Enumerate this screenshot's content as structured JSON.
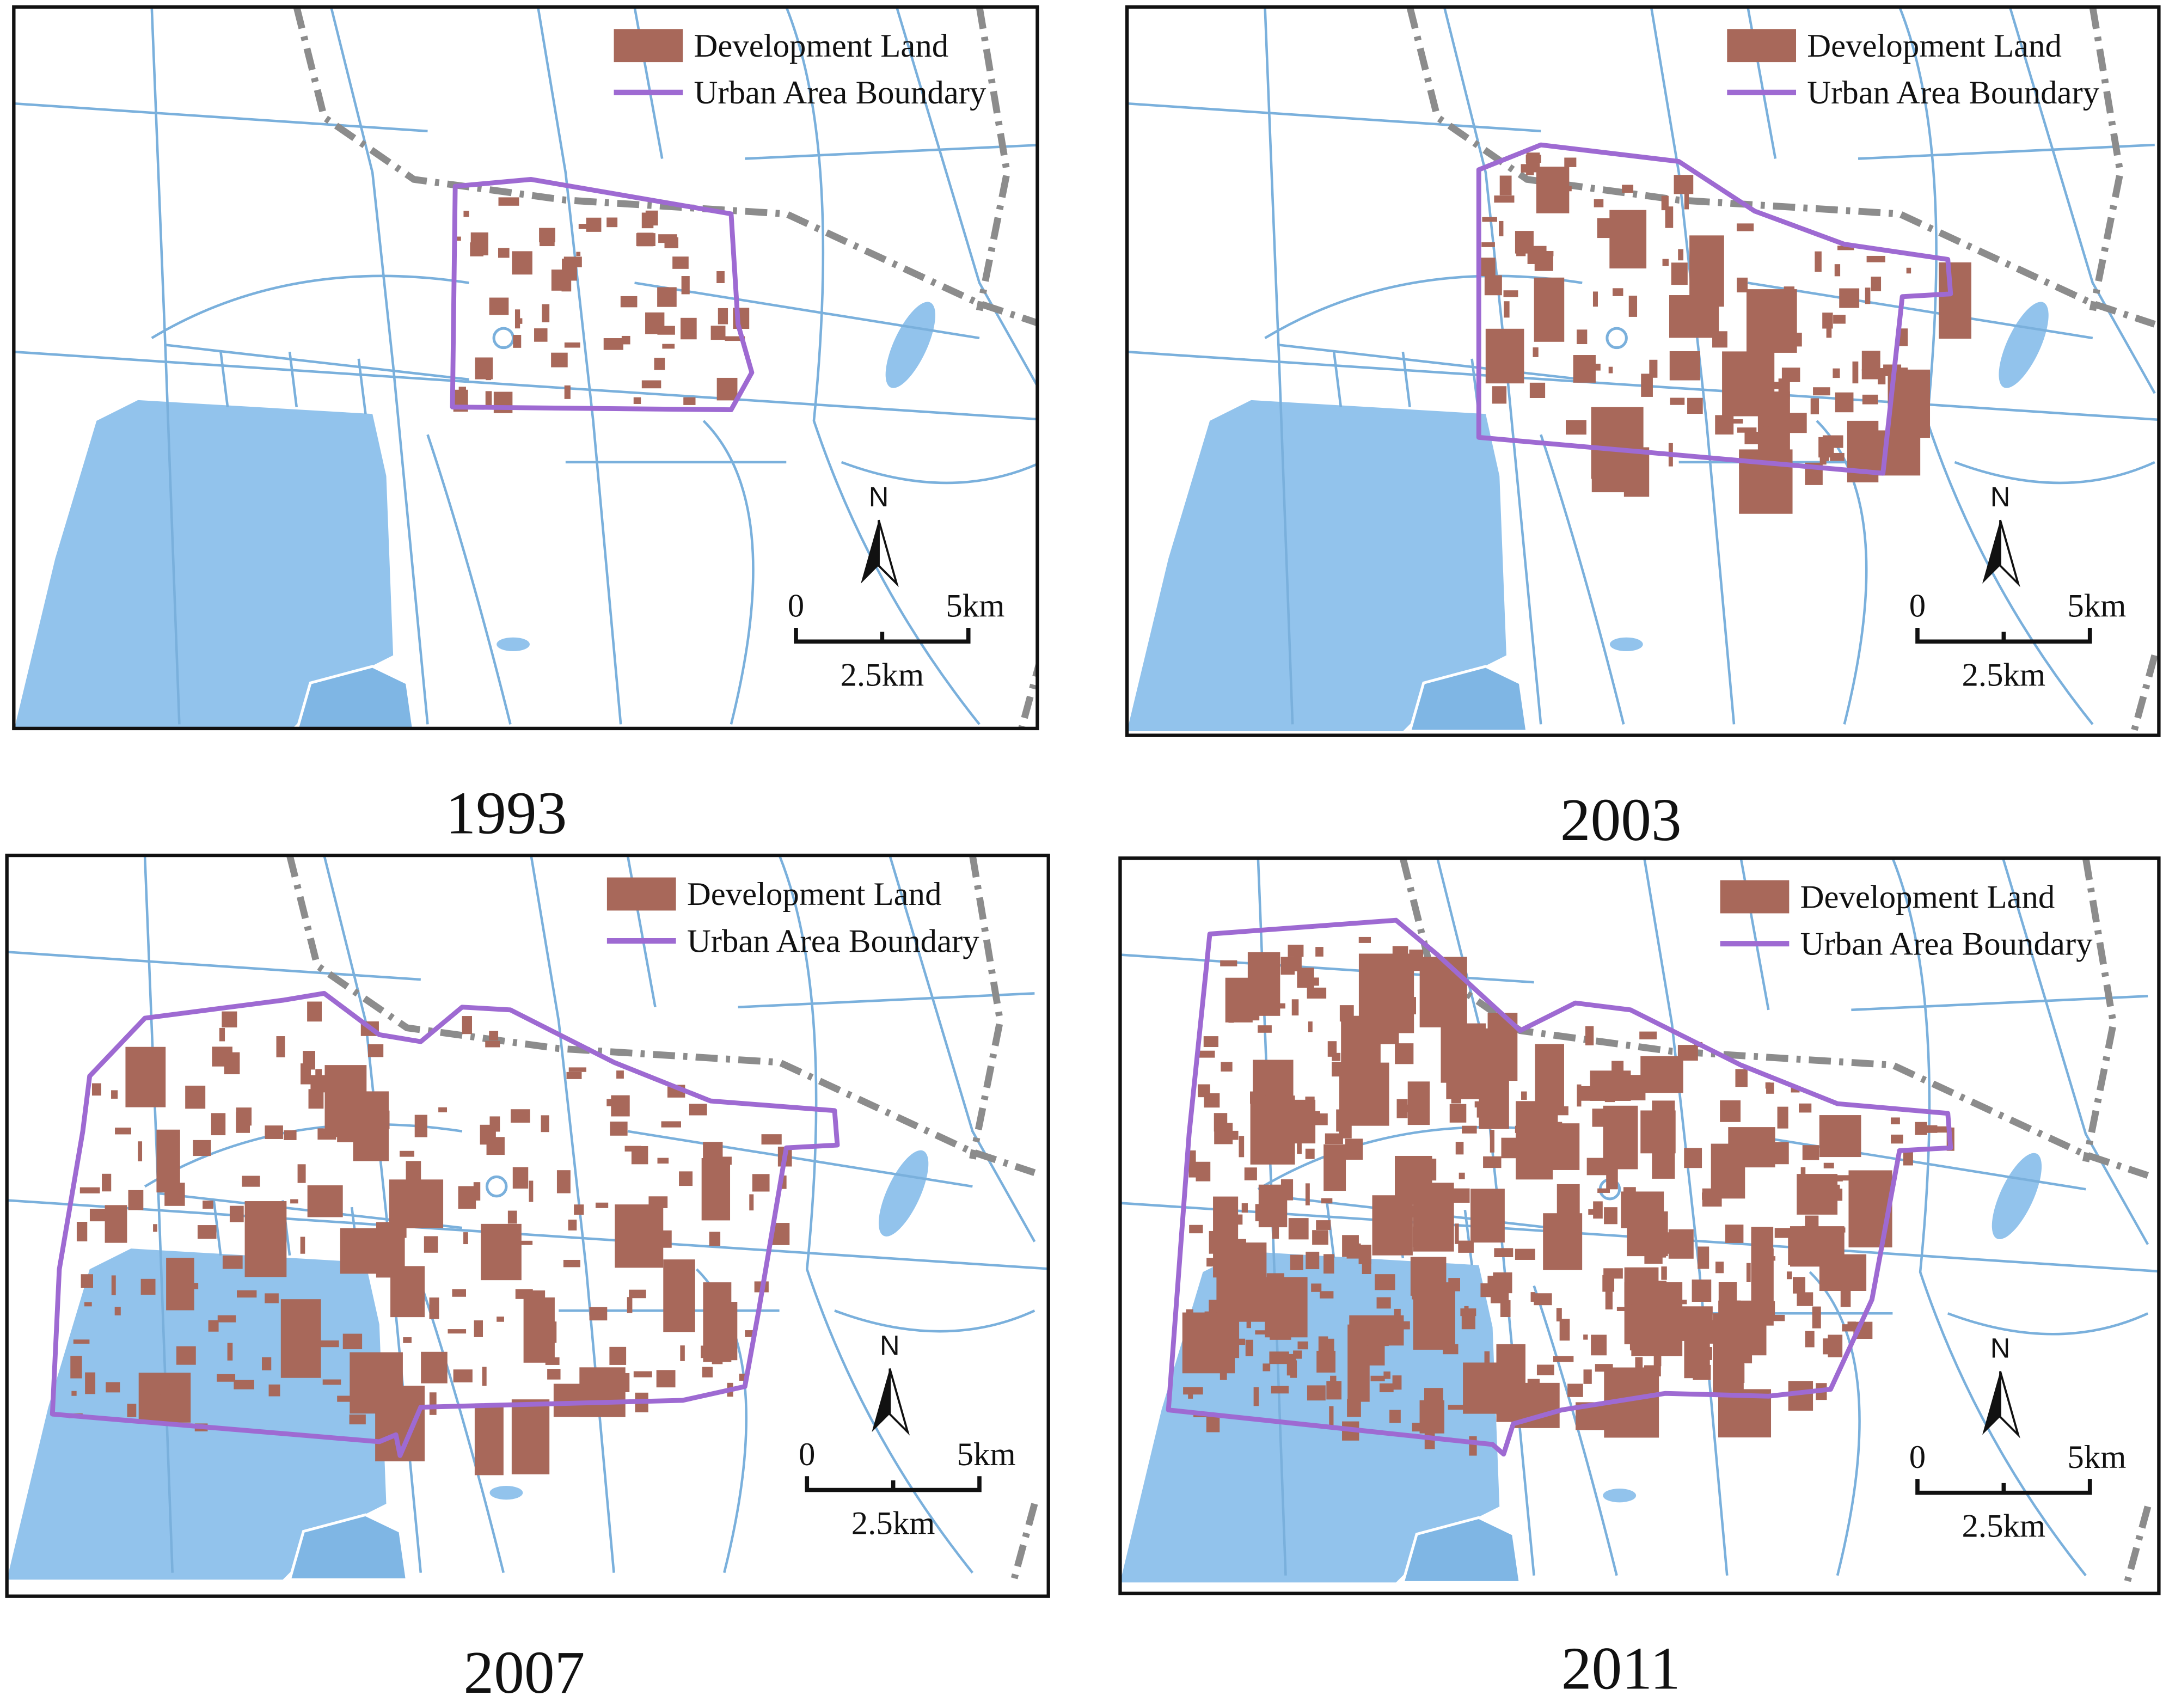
{
  "panels": [
    {
      "year": "1993",
      "legend": {
        "development_land": "Development Land",
        "urban_area_boundary": "Urban Area Boundary"
      },
      "north": "N",
      "scale": {
        "start": "0",
        "end": "5km",
        "mid": "2.5km"
      }
    },
    {
      "year": "2003",
      "legend": {
        "development_land": "Development Land",
        "urban_area_boundary": "Urban Area Boundary"
      },
      "north": "N",
      "scale": {
        "start": "0",
        "end": "5km",
        "mid": "2.5km"
      }
    },
    {
      "year": "2007",
      "legend": {
        "development_land": "Development Land",
        "urban_area_boundary": "Urban Area Boundary"
      },
      "north": "N",
      "scale": {
        "start": "0",
        "end": "5km",
        "mid": "2.5km"
      }
    },
    {
      "year": "2011",
      "legend": {
        "development_land": "Development Land",
        "urban_area_boundary": "Urban Area Boundary"
      },
      "north": "N",
      "scale": {
        "start": "0",
        "end": "5km",
        "mid": "2.5km"
      }
    }
  ]
}
